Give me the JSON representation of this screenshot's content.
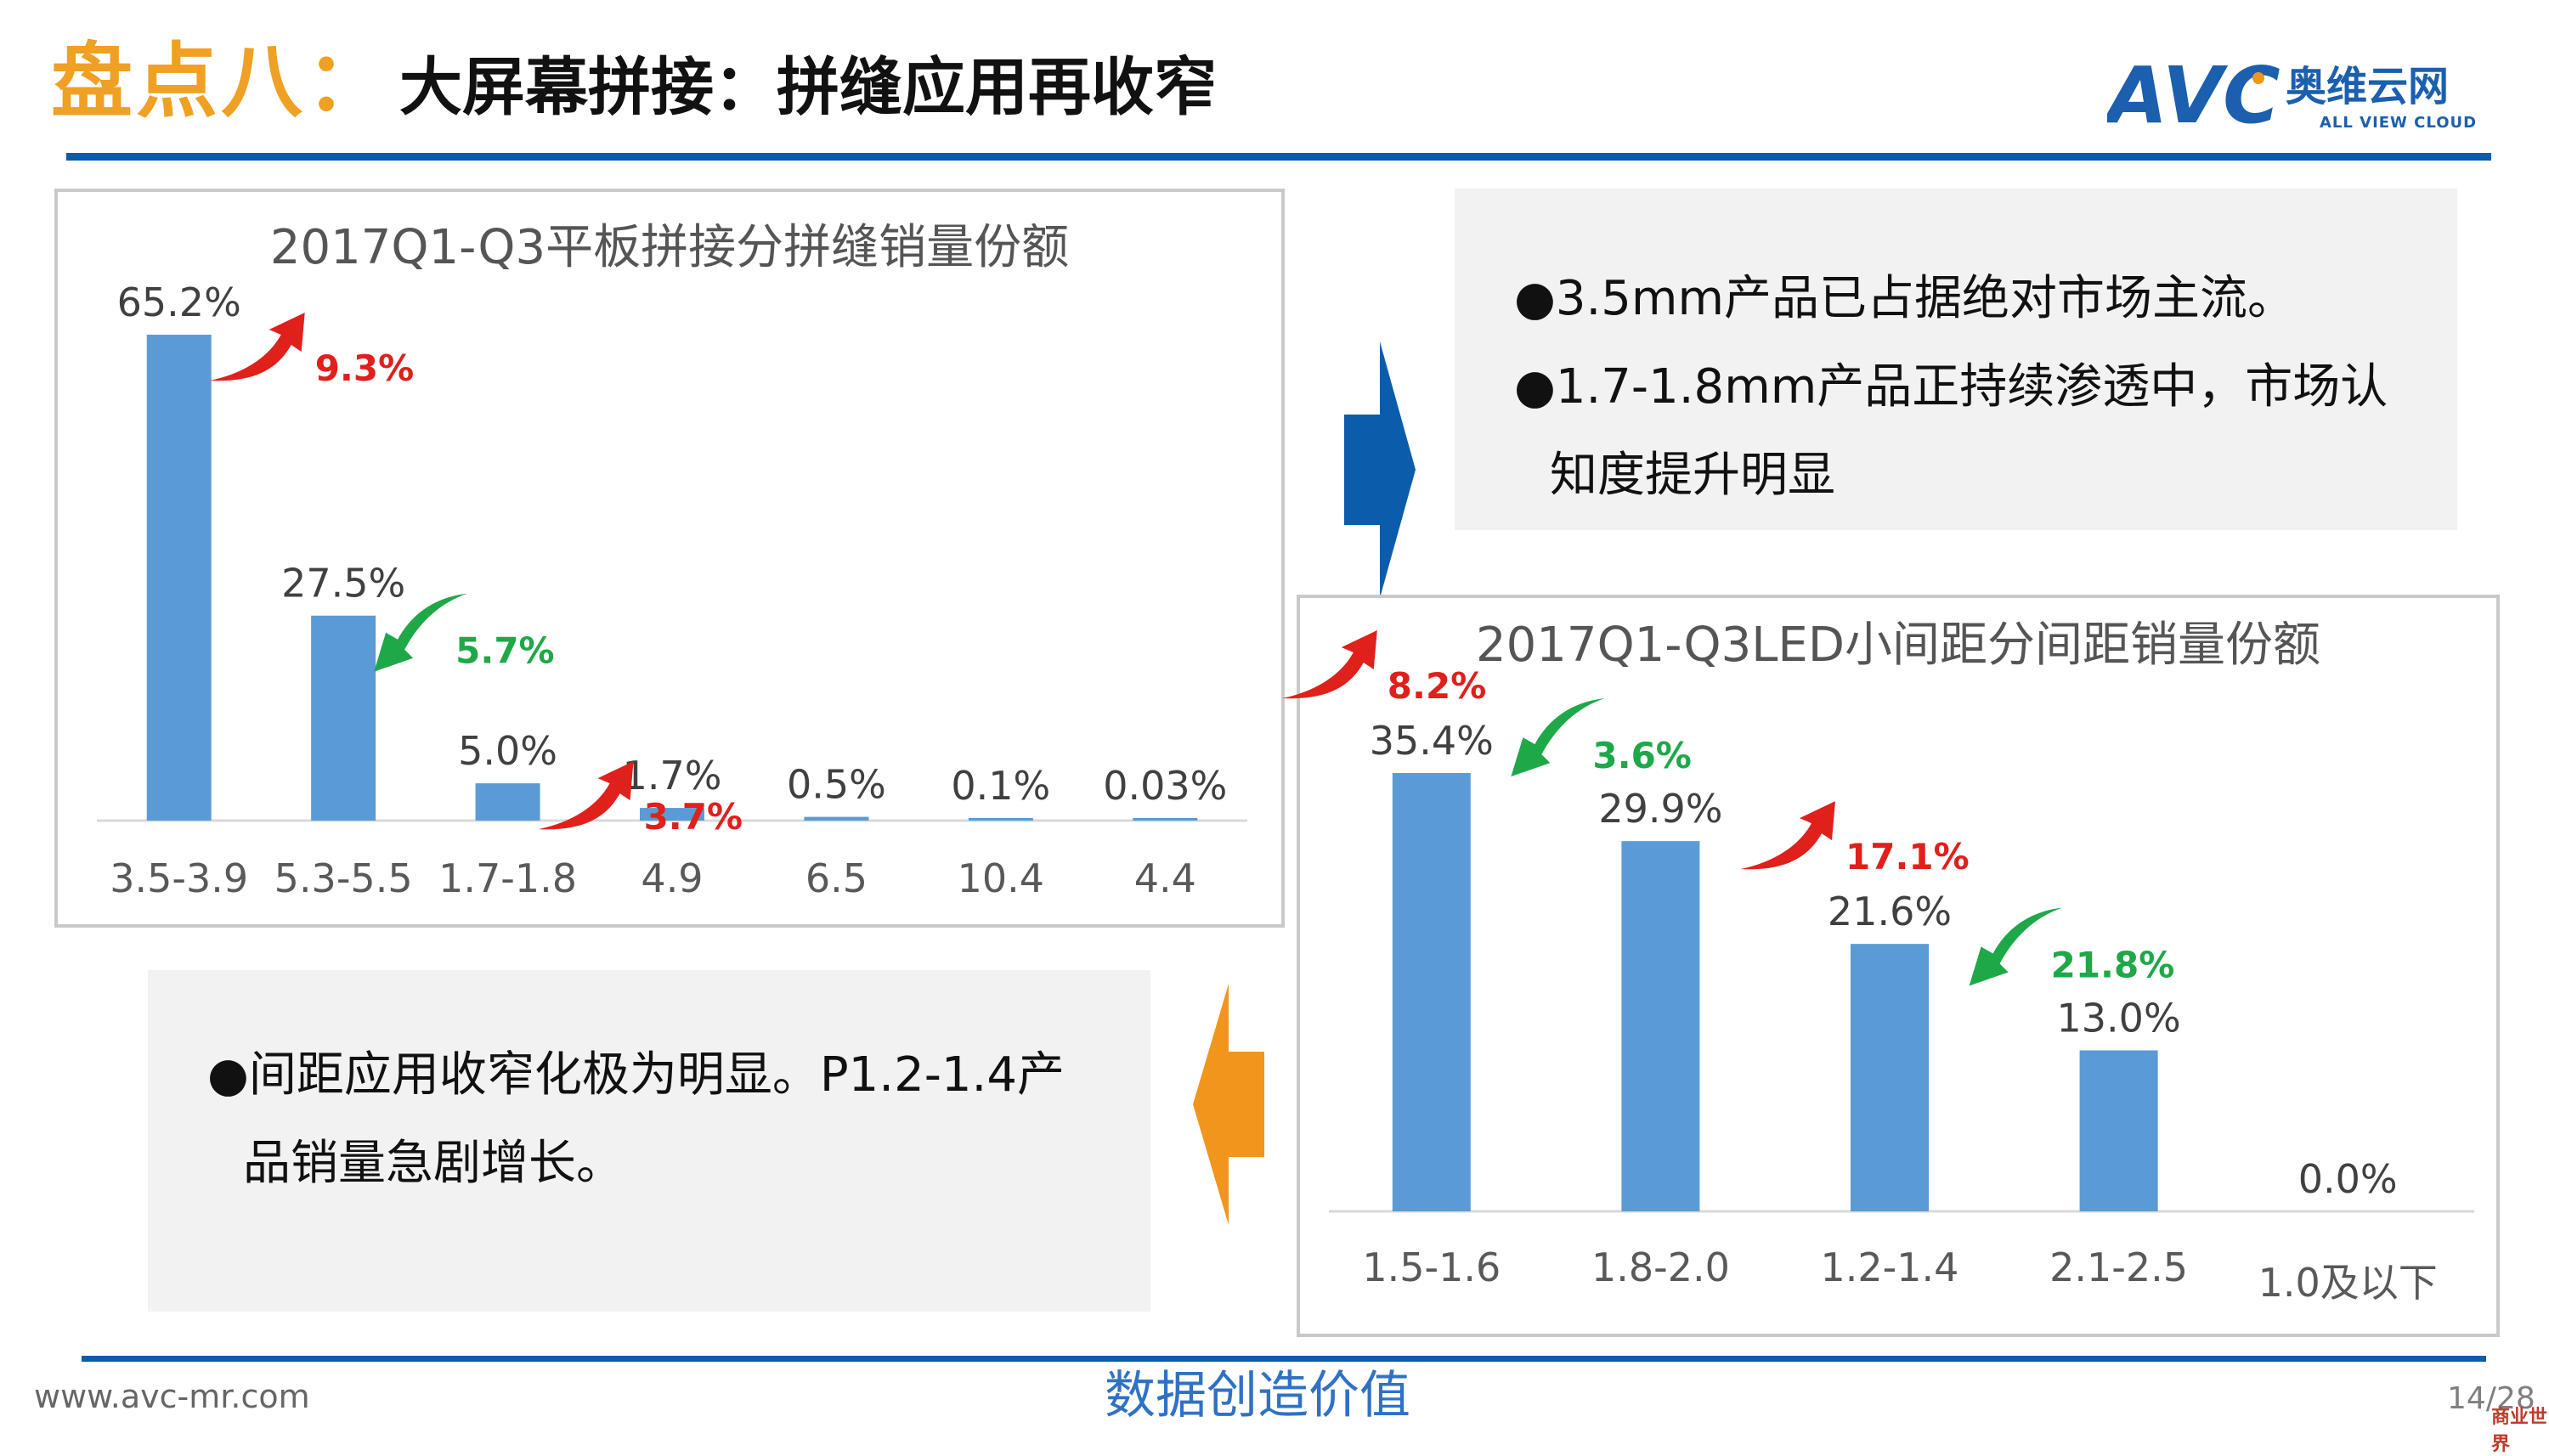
{
  "header": {
    "title_lead": "盘点八：",
    "title_rest": "大屏幕拼接：拼缝应用再收窄",
    "logo": {
      "mark": "AVC",
      "name_cn": "奥维云网",
      "name_en": "ALL VIEW CLOUD",
      "color": "#1b5fae"
    }
  },
  "notes": {
    "top_lines": [
      "●3.5mm产品已占据绝对市场主流。",
      "●1.7-1.8mm产品正持续渗透中，市场认",
      "知度提升明显"
    ],
    "bottom_lines": [
      "●间距应用收窄化极为明显。P1.2-1.4产",
      "品销量急剧增长。"
    ]
  },
  "chart_data": [
    {
      "type": "bar",
      "title": "2017Q1-Q3平板拼接分拼缝销量份额",
      "categories": [
        "3.5-3.9",
        "5.3-5.5",
        "1.7-1.8",
        "4.9",
        "6.5",
        "10.4",
        "4.4"
      ],
      "values": [
        65.2,
        27.5,
        5.0,
        1.7,
        0.5,
        0.1,
        0.03
      ],
      "value_labels": [
        "65.2%",
        "27.5%",
        "5.0%",
        "1.7%",
        "0.5%",
        "0.1%",
        "0.03%"
      ],
      "ylim": [
        0,
        65.2
      ],
      "bar_color": "#5b9bd5",
      "annotations": [
        {
          "category": "3.5-3.9",
          "text": "9.3%",
          "direction": "up",
          "color": "#e0201b"
        },
        {
          "category": "5.3-5.5",
          "text": "5.7%",
          "direction": "down",
          "color": "#1ea848"
        },
        {
          "category": "1.7-1.8",
          "text": "3.7%",
          "direction": "up",
          "color": "#e0201b"
        }
      ]
    },
    {
      "type": "bar",
      "title": "2017Q1-Q3LED小间距分间距销量份额",
      "categories": [
        "1.5-1.6",
        "1.8-2.0",
        "1.2-1.4",
        "2.1-2.5",
        "1.0及以下"
      ],
      "values": [
        35.4,
        29.9,
        21.6,
        13.0,
        0.0
      ],
      "value_labels": [
        "35.4%",
        "29.9%",
        "21.6%",
        "13.0%",
        "0.0%"
      ],
      "ylim": [
        0,
        35.4
      ],
      "bar_color": "#5b9bd5",
      "annotations": [
        {
          "category": "1.5-1.6",
          "text": "8.2%",
          "direction": "up",
          "color": "#e0201b"
        },
        {
          "category": "1.8-2.0",
          "text": "3.6%",
          "direction": "down",
          "color": "#1ea848"
        },
        {
          "category": "1.2-1.4",
          "text": "17.1%",
          "direction": "up",
          "color": "#e0201b"
        },
        {
          "category": "2.1-2.5",
          "text": "21.8%",
          "direction": "down",
          "color": "#1ea848"
        }
      ]
    }
  ],
  "arrows": {
    "right_color": "#0b5cab",
    "left_color": "#f2951d"
  },
  "footer": {
    "url": "www.avc-mr.com",
    "slogan": "数据创造价值",
    "page": "14/28",
    "corner_mark": "商业世界"
  }
}
